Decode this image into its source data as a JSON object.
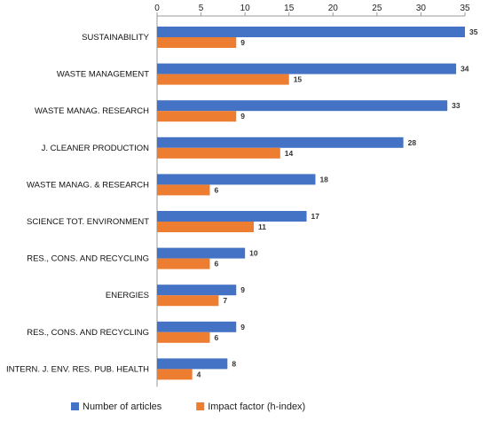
{
  "chart_data": {
    "type": "bar",
    "orientation": "horizontal",
    "title": "",
    "xlabel": "",
    "ylabel": "",
    "xlim": [
      0,
      35
    ],
    "xticks": [
      0,
      5,
      10,
      15,
      20,
      25,
      30,
      35
    ],
    "x_axis_position": "top",
    "grid": false,
    "legend_position": "bottom",
    "categories": [
      "SUSTAINABILITY",
      "WASTE MANAGEMENT",
      "WASTE MANAG. RESEARCH",
      "J. CLEANER PRODUCTION",
      "WASTE MANAG. & RESEARCH",
      "SCIENCE TOT. ENVIRONMENT",
      "RES., CONS. AND RECYCLING",
      "ENERGIES",
      "RES., CONS. AND RECYCLING",
      "INTERN. J. ENV. RES. PUB. HEALTH"
    ],
    "series": [
      {
        "name": "Number of articles",
        "color": "#4472C4",
        "values": [
          35,
          34,
          33,
          28,
          18,
          17,
          10,
          9,
          9,
          8
        ]
      },
      {
        "name": "Impact factor (h-index)",
        "color": "#ED7D31",
        "values": [
          9,
          15,
          9,
          14,
          6,
          11,
          6,
          7,
          6,
          4
        ]
      }
    ]
  }
}
